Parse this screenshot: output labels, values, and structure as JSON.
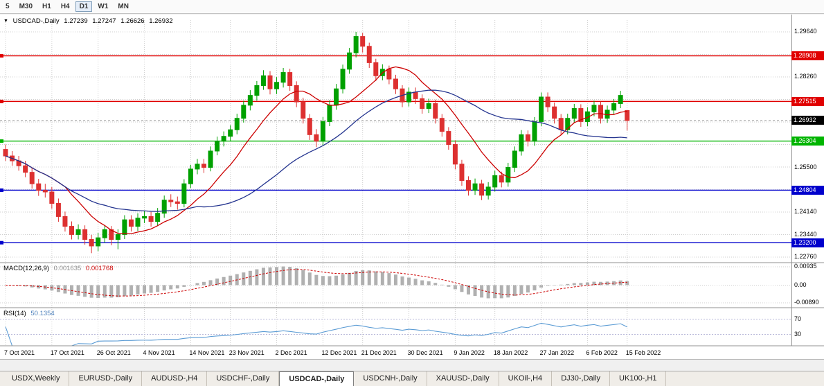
{
  "toolbar": {
    "timeframes": [
      "5",
      "M30",
      "H1",
      "H4",
      "D1",
      "W1",
      "MN"
    ],
    "active": "D1"
  },
  "chart_header": {
    "arrow": "▼",
    "symbol_label": "USDCAD-,Daily",
    "open": "1.27239",
    "high": "1.27247",
    "low": "1.26626",
    "close": "1.26932"
  },
  "chart_data": {
    "type": "candlestick",
    "symbol": "USDCAD",
    "timeframe": "Daily",
    "price_axis": {
      "top": 1.2964,
      "bottom": 1.2276,
      "labels": [
        {
          "text": "1.29640",
          "value": 1.2964
        },
        {
          "text": "1.28260",
          "value": 1.2826
        },
        {
          "text": "1.25500",
          "value": 1.255
        },
        {
          "text": "1.24140",
          "value": 1.2414
        },
        {
          "text": "1.23440",
          "value": 1.2344
        },
        {
          "text": "1.22760",
          "value": 1.2276
        }
      ]
    },
    "tags": [
      {
        "text": "1.28908",
        "value": 1.28908,
        "color": "#e00000",
        "kind": "hline"
      },
      {
        "text": "1.27515",
        "value": 1.27515,
        "color": "#e00000",
        "kind": "hline"
      },
      {
        "text": "1.26932",
        "value": 1.26932,
        "color": "#000000",
        "kind": "price"
      },
      {
        "text": "1.26304",
        "value": 1.26304,
        "color": "#00b400",
        "kind": "hline"
      },
      {
        "text": "1.24804",
        "value": 1.24804,
        "color": "#0000cc",
        "kind": "hline"
      },
      {
        "text": "1.23200",
        "value": 1.232,
        "color": "#0000cc",
        "kind": "hline"
      }
    ],
    "current_price": {
      "value": 1.26932,
      "text": "1.26932"
    },
    "x_labels": [
      {
        "text": "7 Oct 2021",
        "index": 0
      },
      {
        "text": "17 Oct 2021",
        "index": 7
      },
      {
        "text": "26 Oct 2021",
        "index": 14
      },
      {
        "text": "4 Nov 2021",
        "index": 21
      },
      {
        "text": "14 Nov 2021",
        "index": 28
      },
      {
        "text": "23 Nov 2021",
        "index": 34
      },
      {
        "text": "2 Dec 2021",
        "index": 41
      },
      {
        "text": "12 Dec 2021",
        "index": 48
      },
      {
        "text": "21 Dec 2021",
        "index": 54
      },
      {
        "text": "30 Dec 2021",
        "index": 61
      },
      {
        "text": "9 Jan 2022",
        "index": 68
      },
      {
        "text": "18 Jan 2022",
        "index": 74
      },
      {
        "text": "27 Jan 2022",
        "index": 81
      },
      {
        "text": "6 Feb 2022",
        "index": 88
      },
      {
        "text": "15 Feb 2022",
        "index": 94
      }
    ],
    "candles": [
      [
        1.2605,
        1.262,
        1.257,
        1.2585
      ],
      [
        1.2585,
        1.26,
        1.2555,
        1.257
      ],
      [
        1.257,
        1.2585,
        1.254,
        1.2555
      ],
      [
        1.2555,
        1.257,
        1.252,
        1.2535
      ],
      [
        1.2535,
        1.255,
        1.2485,
        1.25
      ],
      [
        1.25,
        1.2515,
        1.2463,
        1.248
      ],
      [
        1.248,
        1.25,
        1.2458,
        1.2475
      ],
      [
        1.2475,
        1.249,
        1.2424,
        1.244
      ],
      [
        1.244,
        1.2455,
        1.2384,
        1.24
      ],
      [
        1.24,
        1.2415,
        1.2354,
        1.237
      ],
      [
        1.237,
        1.2385,
        1.233,
        1.2345
      ],
      [
        1.2345,
        1.2376,
        1.233,
        1.236
      ],
      [
        1.236,
        1.2373,
        1.2314,
        1.233
      ],
      [
        1.233,
        1.2344,
        1.2288,
        1.231
      ],
      [
        1.231,
        1.235,
        1.2294,
        1.2335
      ],
      [
        1.2335,
        1.2374,
        1.232,
        1.236
      ],
      [
        1.236,
        1.2371,
        1.2312,
        1.233
      ],
      [
        1.233,
        1.2361,
        1.23,
        1.2345
      ],
      [
        1.2345,
        1.2404,
        1.2331,
        1.239
      ],
      [
        1.239,
        1.2404,
        1.2354,
        1.237
      ],
      [
        1.237,
        1.241,
        1.2356,
        1.2395
      ],
      [
        1.2395,
        1.2418,
        1.238,
        1.24
      ],
      [
        1.24,
        1.2414,
        1.2369,
        1.2385
      ],
      [
        1.2385,
        1.2426,
        1.2371,
        1.241
      ],
      [
        1.241,
        1.2464,
        1.2396,
        1.245
      ],
      [
        1.245,
        1.2468,
        1.2429,
        1.2445
      ],
      [
        1.2445,
        1.2461,
        1.2421,
        1.244
      ],
      [
        1.244,
        1.2514,
        1.2428,
        1.25
      ],
      [
        1.25,
        1.2558,
        1.2487,
        1.2545
      ],
      [
        1.2545,
        1.2576,
        1.2529,
        1.256
      ],
      [
        1.256,
        1.2576,
        1.2533,
        1.255
      ],
      [
        1.255,
        1.2614,
        1.2538,
        1.26
      ],
      [
        1.26,
        1.2644,
        1.2587,
        1.263
      ],
      [
        1.263,
        1.266,
        1.2614,
        1.2645
      ],
      [
        1.2645,
        1.2679,
        1.2629,
        1.2665
      ],
      [
        1.2665,
        1.2714,
        1.2651,
        1.27
      ],
      [
        1.27,
        1.2754,
        1.2687,
        1.274
      ],
      [
        1.274,
        1.2786,
        1.2724,
        1.277
      ],
      [
        1.277,
        1.2814,
        1.2754,
        1.28
      ],
      [
        1.28,
        1.2847,
        1.2787,
        1.283
      ],
      [
        1.283,
        1.2844,
        1.2773,
        1.279
      ],
      [
        1.279,
        1.2826,
        1.2774,
        1.281
      ],
      [
        1.281,
        1.2854,
        1.2794,
        1.284
      ],
      [
        1.284,
        1.2851,
        1.2784,
        1.28
      ],
      [
        1.28,
        1.2813,
        1.2734,
        1.275
      ],
      [
        1.275,
        1.2763,
        1.2684,
        1.27
      ],
      [
        1.27,
        1.2713,
        1.2634,
        1.265
      ],
      [
        1.265,
        1.2667,
        1.2612,
        1.263
      ],
      [
        1.263,
        1.2704,
        1.2616,
        1.269
      ],
      [
        1.269,
        1.2755,
        1.2676,
        1.274
      ],
      [
        1.274,
        1.2805,
        1.2726,
        1.279
      ],
      [
        1.279,
        1.2864,
        1.2776,
        1.285
      ],
      [
        1.285,
        1.2915,
        1.2836,
        1.29
      ],
      [
        1.29,
        1.2964,
        1.2886,
        1.295
      ],
      [
        1.295,
        1.2961,
        1.2901,
        1.292
      ],
      [
        1.292,
        1.2931,
        1.2854,
        1.287
      ],
      [
        1.287,
        1.2882,
        1.2814,
        1.283
      ],
      [
        1.283,
        1.2865,
        1.2816,
        1.285
      ],
      [
        1.285,
        1.2861,
        1.2804,
        1.282
      ],
      [
        1.282,
        1.2833,
        1.2774,
        1.279
      ],
      [
        1.279,
        1.2801,
        1.2734,
        1.275
      ],
      [
        1.275,
        1.2794,
        1.2736,
        1.278
      ],
      [
        1.278,
        1.2794,
        1.2744,
        1.276
      ],
      [
        1.276,
        1.2773,
        1.2714,
        1.273
      ],
      [
        1.273,
        1.276,
        1.2716,
        1.2745
      ],
      [
        1.2745,
        1.2757,
        1.2684,
        1.27
      ],
      [
        1.27,
        1.2713,
        1.2644,
        1.266
      ],
      [
        1.266,
        1.2673,
        1.2604,
        1.262
      ],
      [
        1.262,
        1.2633,
        1.2544,
        1.256
      ],
      [
        1.256,
        1.2573,
        1.2494,
        1.251
      ],
      [
        1.251,
        1.2523,
        1.2464,
        1.248
      ],
      [
        1.248,
        1.2516,
        1.2466,
        1.25
      ],
      [
        1.25,
        1.2512,
        1.245,
        1.2465
      ],
      [
        1.2465,
        1.2505,
        1.2452,
        1.249
      ],
      [
        1.249,
        1.254,
        1.2476,
        1.2525
      ],
      [
        1.2525,
        1.2537,
        1.2489,
        1.2505
      ],
      [
        1.2505,
        1.2564,
        1.2491,
        1.255
      ],
      [
        1.255,
        1.2614,
        1.2536,
        1.26
      ],
      [
        1.26,
        1.2664,
        1.2586,
        1.265
      ],
      [
        1.265,
        1.2663,
        1.2614,
        1.263
      ],
      [
        1.263,
        1.2704,
        1.2616,
        1.269
      ],
      [
        1.269,
        1.2779,
        1.2676,
        1.2765
      ],
      [
        1.2765,
        1.2779,
        1.2719,
        1.2735
      ],
      [
        1.2735,
        1.2748,
        1.2684,
        1.27
      ],
      [
        1.27,
        1.2713,
        1.2649,
        1.2665
      ],
      [
        1.2665,
        1.2714,
        1.2651,
        1.27
      ],
      [
        1.27,
        1.2744,
        1.2686,
        1.273
      ],
      [
        1.273,
        1.2743,
        1.2674,
        1.269
      ],
      [
        1.269,
        1.2734,
        1.2676,
        1.272
      ],
      [
        1.272,
        1.2754,
        1.2706,
        1.274
      ],
      [
        1.274,
        1.2751,
        1.2684,
        1.27
      ],
      [
        1.27,
        1.2739,
        1.2686,
        1.2725
      ],
      [
        1.2725,
        1.2759,
        1.2711,
        1.2745
      ],
      [
        1.2745,
        1.2784,
        1.2731,
        1.277
      ],
      [
        1.27239,
        1.27247,
        1.26626,
        1.26932
      ]
    ],
    "ma": {
      "fast_period": 10,
      "fast_color": "#cc0000",
      "slow_period": 30,
      "slow_color": "#24348f"
    },
    "macd": {
      "label": "MACD(12,26,9)",
      "value_main": "0.001635",
      "value_signal": "0.001768",
      "fast": 12,
      "slow": 26,
      "signal": 9,
      "hist_color": "#b0b0b0",
      "signal_color": "#cc0000",
      "axis_labels": [
        {
          "text": "0.00935",
          "pos": "top"
        },
        {
          "text": "0.00",
          "pos": "zero"
        },
        {
          "text": "-0.00890",
          "pos": "bottom"
        }
      ]
    },
    "rsi": {
      "label": "RSI(14)",
      "value": "50.1354",
      "period": 14,
      "color": "#5a9bd4",
      "levels": [
        70,
        30
      ],
      "axis_labels": [
        "70",
        "30"
      ]
    },
    "colors": {
      "bull": "#00a000",
      "bear": "#dd3030",
      "grid": "#cfcfcf",
      "bg": "#ffffff"
    }
  },
  "tab_bar": {
    "tabs": [
      {
        "label": "USDX,Weekly"
      },
      {
        "label": "EURUSD-,Daily"
      },
      {
        "label": "AUDUSD-,H4"
      },
      {
        "label": "USDCHF-,Daily"
      },
      {
        "label": "USDCAD-,Daily"
      },
      {
        "label": "USDCNH-,Daily"
      },
      {
        "label": "XAUUSD-,Daily"
      },
      {
        "label": "UKOil-,H4"
      },
      {
        "label": "DJ30-,Daily"
      },
      {
        "label": "UK100-,H1"
      }
    ],
    "active": "USDCAD-,Daily"
  }
}
